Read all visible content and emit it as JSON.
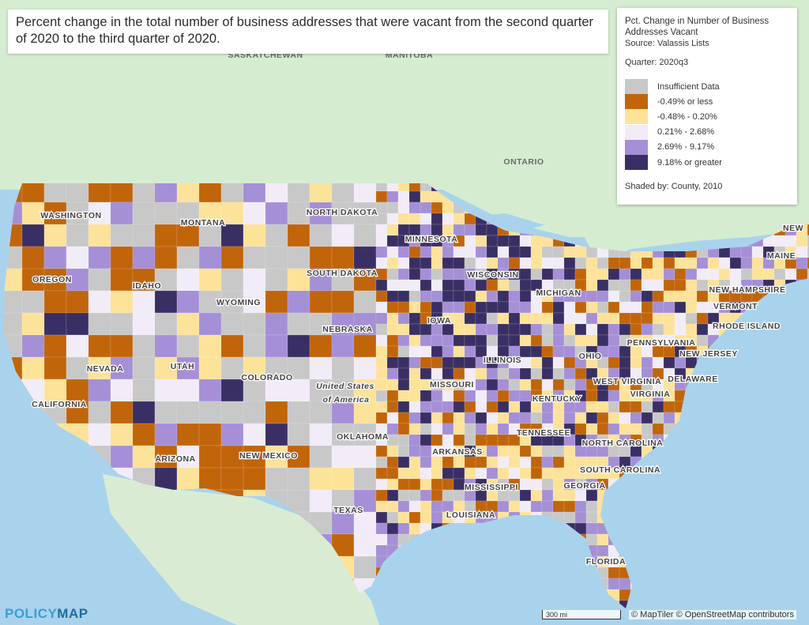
{
  "title": "Percent change in the total number of business addresses that were vacant from the second quarter of 2020 to the third quarter of 2020.",
  "legend": {
    "title": "Pct. Change in Number of Business Addresses Vacant",
    "source": "Source: Valassis Lists",
    "quarter": "Quarter: 2020q3",
    "items": [
      {
        "label": "Insufficient Data",
        "color": "#c8c8c8"
      },
      {
        "label": "-0.49% or less",
        "color": "#c1650b"
      },
      {
        "label": "-0.48% - 0.20%",
        "color": "#fde29a"
      },
      {
        "label": "0.21% - 2.68%",
        "color": "#f1ecf8"
      },
      {
        "label": "2.69% - 9.17%",
        "color": "#a58fd6"
      },
      {
        "label": "9.18% or greater",
        "color": "#3a2f64"
      }
    ],
    "shaded_by": "Shaded by: County, 2010"
  },
  "base_labels": [
    "SASKATCHEWAN",
    "MANITOBA",
    "ONTARIO"
  ],
  "country_label": [
    "United States",
    "of America"
  ],
  "state_labels": [
    "WASHINGTON",
    "MONTANA",
    "NORTH DAKOTA",
    "MINNESOTA",
    "OREGON",
    "IDAHO",
    "SOUTH DAKOTA",
    "WISCONSIN",
    "MICHIGAN",
    "WYOMING",
    "NEBRASKA",
    "IOWA",
    "NEVADA",
    "UTAH",
    "COLORADO",
    "ILLINOIS",
    "OHIO",
    "CALIFORNIA",
    "MISSOURI",
    "KENTUCKY",
    "WEST VIRGINIA",
    "VIRGINIA",
    "PENNSYLVANIA",
    "NEW JERSEY",
    "DELAWARE",
    "NEW HAMPSHIRE",
    "VERMONT",
    "MAINE",
    "RHODE ISLAND",
    "OKLAHOMA",
    "TENNESSEE",
    "NORTH CAROLINA",
    "ARKANSAS",
    "NEW MEXICO",
    "ARIZONA",
    "SOUTH CAROLINA",
    "MISSISSIPPI",
    "GEORGIA",
    "TEXAS",
    "LOUISIANA",
    "FLORIDA",
    "NEW"
  ],
  "footer": {
    "logo_a": "POLICY",
    "logo_b": "MAP",
    "scale": "300 mi",
    "attribution": "© MapTiler © OpenStreetMap contributors"
  }
}
